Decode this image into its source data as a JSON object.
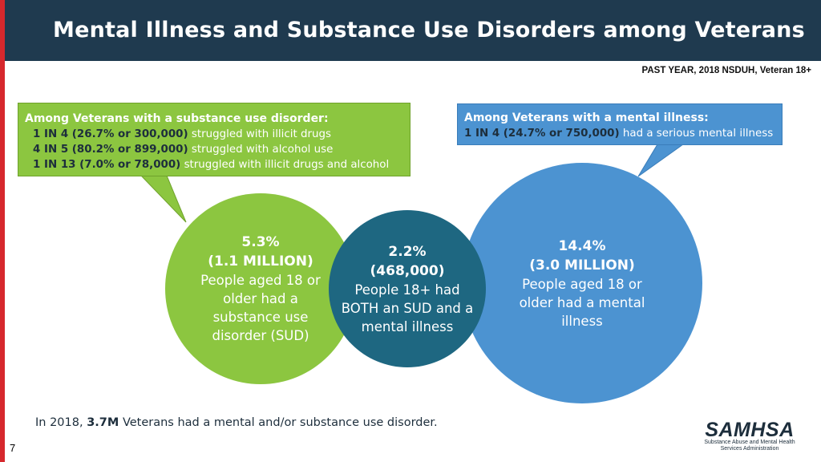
{
  "header": {
    "title": "Mental Illness and Substance Use Disorders among Veterans",
    "source": "PAST YEAR, 2018 NSDUH, Veteran 18+"
  },
  "sud_callout": {
    "heading": "Among Veterans with a substance use disorder:",
    "lines": [
      {
        "stat": "1 IN 4 (26.7% or 300,000)",
        "text": "struggled with illicit drugs"
      },
      {
        "stat": "4 IN 5 (80.2% or 899,000)",
        "text": "struggled with alcohol use"
      },
      {
        "stat": "1 IN 13 (7.0% or 78,000)",
        "text": "struggled with illicit drugs and alcohol"
      }
    ]
  },
  "mi_callout": {
    "heading": "Among Veterans with a mental illness:",
    "lines": [
      {
        "stat": "1 IN 4 (24.7% or 750,000)",
        "text": "had a serious mental illness"
      }
    ]
  },
  "circles": {
    "sud": {
      "pct": "5.3%",
      "count": "(1.1 MILLION)",
      "text": "People aged 18 or older had a substance use disorder (SUD)"
    },
    "both": {
      "pct": "2.2%",
      "count": "(468,000)",
      "text": "People 18+ had BOTH an SUD and a mental illness"
    },
    "mi": {
      "pct": "14.4%",
      "count": "(3.0 MILLION)",
      "text": "People aged 18 or older had a mental illness"
    }
  },
  "footer": {
    "prefix": "In 2018,",
    "bold": "3.7M",
    "suffix": "Veterans had a mental and/or substance use disorder."
  },
  "logo": {
    "name": "SAMHSA",
    "subtitle_1": "Substance Abuse and Mental Health",
    "subtitle_2": "Services Administration"
  },
  "page_number": "7",
  "colors": {
    "green": "#8cc640",
    "blue": "#4c93d1",
    "teal": "#1e6781",
    "header_bg": "#1f3a4f",
    "accent_red": "#d6282d"
  }
}
